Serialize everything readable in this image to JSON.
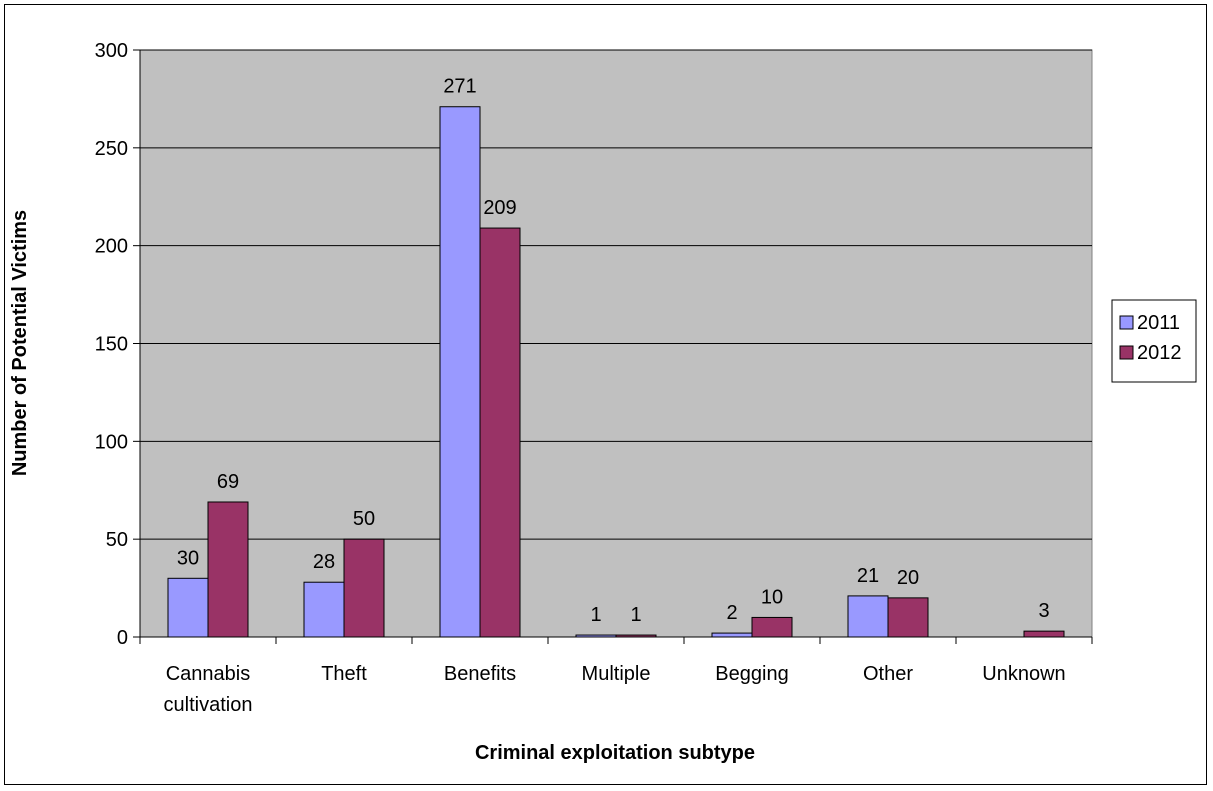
{
  "chart_data": {
    "type": "bar",
    "title": "",
    "xlabel": "Criminal exploitation subtype",
    "ylabel": "Number of Potential Victims",
    "ylim": [
      0,
      300
    ],
    "yticks": [
      0,
      50,
      100,
      150,
      200,
      250,
      300
    ],
    "grid": true,
    "legend": "right",
    "categories": [
      [
        "Cannabis",
        "cultivation"
      ],
      [
        "Theft"
      ],
      [
        "Benefits"
      ],
      [
        "Multiple"
      ],
      [
        "Begging"
      ],
      [
        "Other"
      ],
      [
        "Unknown"
      ]
    ],
    "series": [
      {
        "name": "2011",
        "color": "#9999ff",
        "values": [
          30,
          28,
          271,
          1,
          2,
          21,
          0
        ],
        "labels": [
          "30",
          "28",
          "271",
          "1",
          "2",
          "21",
          ""
        ]
      },
      {
        "name": "2012",
        "color": "#993366",
        "values": [
          69,
          50,
          209,
          1,
          10,
          20,
          3
        ],
        "labels": [
          "69",
          "50",
          "209",
          "1",
          "10",
          "20",
          "3"
        ]
      }
    ],
    "plot_background": "#c0c0c0",
    "grid_color": "#000000"
  }
}
